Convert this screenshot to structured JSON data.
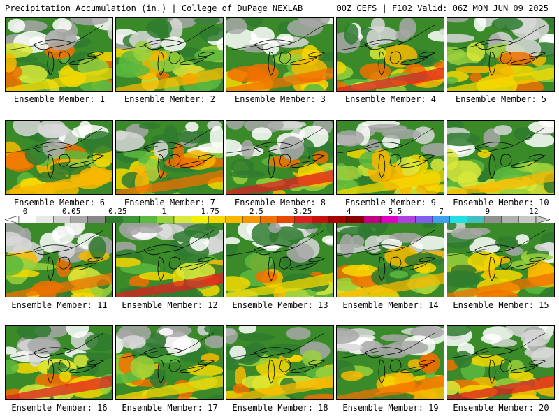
{
  "header": {
    "title": "Precipitation Accumulation (in.) | College of DuPage NEXLAB",
    "run_info": "00Z GEFS | F102 Valid: 06Z MON JUN 09 2025"
  },
  "colorbar": {
    "labels": [
      "0",
      "0.05",
      "0.25",
      "1",
      "1.75",
      "2.5",
      "3.25",
      "4",
      "5.5",
      "7",
      "9",
      "12"
    ],
    "colors": [
      "#ffffff",
      "#e8e8e8",
      "#d0d0d0",
      "#a8a8a8",
      "#888888",
      "#2f7a2f",
      "#3e963a",
      "#5cb83e",
      "#9ad03c",
      "#d9e83a",
      "#f0f000",
      "#f6d800",
      "#f8b800",
      "#f89800",
      "#f07000",
      "#e84800",
      "#e02020",
      "#c81010",
      "#a80000",
      "#880000",
      "#c00080",
      "#e000c0",
      "#b040e0",
      "#8060f0",
      "#40a0f0",
      "#20e0e0",
      "#40c0c0",
      "#909090",
      "#b0b0b0",
      "#c8c8c8"
    ]
  },
  "members": [
    {
      "label": "Ensemble Member: 1"
    },
    {
      "label": "Ensemble Member: 2"
    },
    {
      "label": "Ensemble Member: 3"
    },
    {
      "label": "Ensemble Member: 4"
    },
    {
      "label": "Ensemble Member: 5"
    },
    {
      "label": "Ensemble Member: 6"
    },
    {
      "label": "Ensemble Member: 7"
    },
    {
      "label": "Ensemble Member: 8"
    },
    {
      "label": "Ensemble Member: 9"
    },
    {
      "label": "Ensemble Member: 10"
    },
    {
      "label": "Ensemble Member: 11"
    },
    {
      "label": "Ensemble Member: 12"
    },
    {
      "label": "Ensemble Member: 13"
    },
    {
      "label": "Ensemble Member: 14"
    },
    {
      "label": "Ensemble Member: 15"
    },
    {
      "label": "Ensemble Member: 16"
    },
    {
      "label": "Ensemble Member: 17"
    },
    {
      "label": "Ensemble Member: 18"
    },
    {
      "label": "Ensemble Member: 19"
    },
    {
      "label": "Ensemble Member: 20"
    }
  ]
}
